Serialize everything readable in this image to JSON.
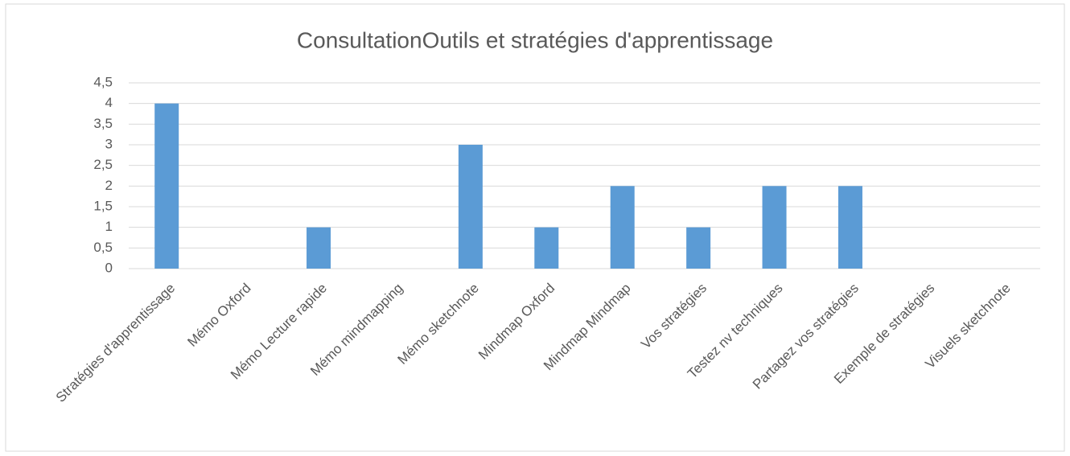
{
  "chart_data": {
    "type": "bar",
    "title": "ConsultationOutils et stratégies d'apprentissage",
    "categories": [
      "Stratégies d'apprentissage",
      "Mémo Oxford",
      "Mémo Lecture rapide",
      "Mémo mindmapping",
      "Mémo sketchnote",
      "Mindmap Oxford",
      "Mindmap Mindmap",
      "Vos stratégies",
      "Testez nv techniques",
      "Partagez vos stratégies",
      "Exemple de stratégies",
      "Visuels sketchnote"
    ],
    "values": [
      4,
      0,
      1,
      0,
      3,
      1,
      2,
      1,
      2,
      2,
      0,
      0
    ],
    "color": "#5b9bd5",
    "ylim": [
      0,
      4.5
    ],
    "yticks": [
      0,
      {
        "value": 0.5,
        "label": "0,5"
      },
      1,
      {
        "value": 1.5,
        "label": "1,5"
      },
      2,
      {
        "value": 2.5,
        "label": "2,5"
      },
      3,
      {
        "value": 3.5,
        "label": "3,5"
      },
      4,
      {
        "value": 4.5,
        "label": "4,5"
      }
    ],
    "grid": true
  }
}
